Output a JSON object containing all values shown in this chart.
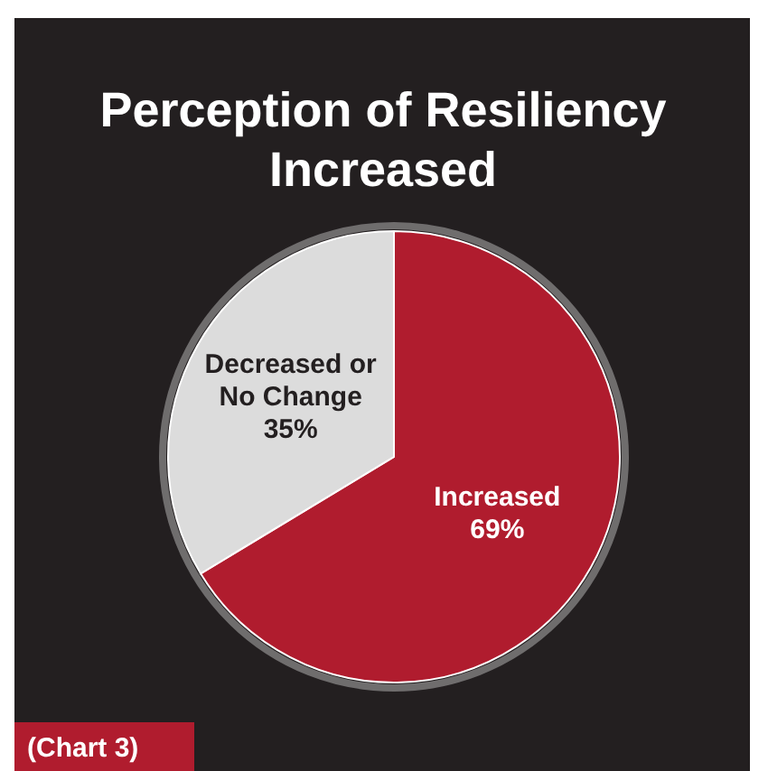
{
  "chart_data": {
    "type": "pie",
    "title": "Perception of Resiliency Increased",
    "categories": [
      "Increased",
      "Decreased or No Change"
    ],
    "values": [
      69,
      35
    ],
    "colors": [
      "#b01c2e",
      "#dcdcdc"
    ],
    "value_labels": [
      "69%",
      "35%"
    ],
    "annotations": [
      "(Chart 3)"
    ]
  }
}
